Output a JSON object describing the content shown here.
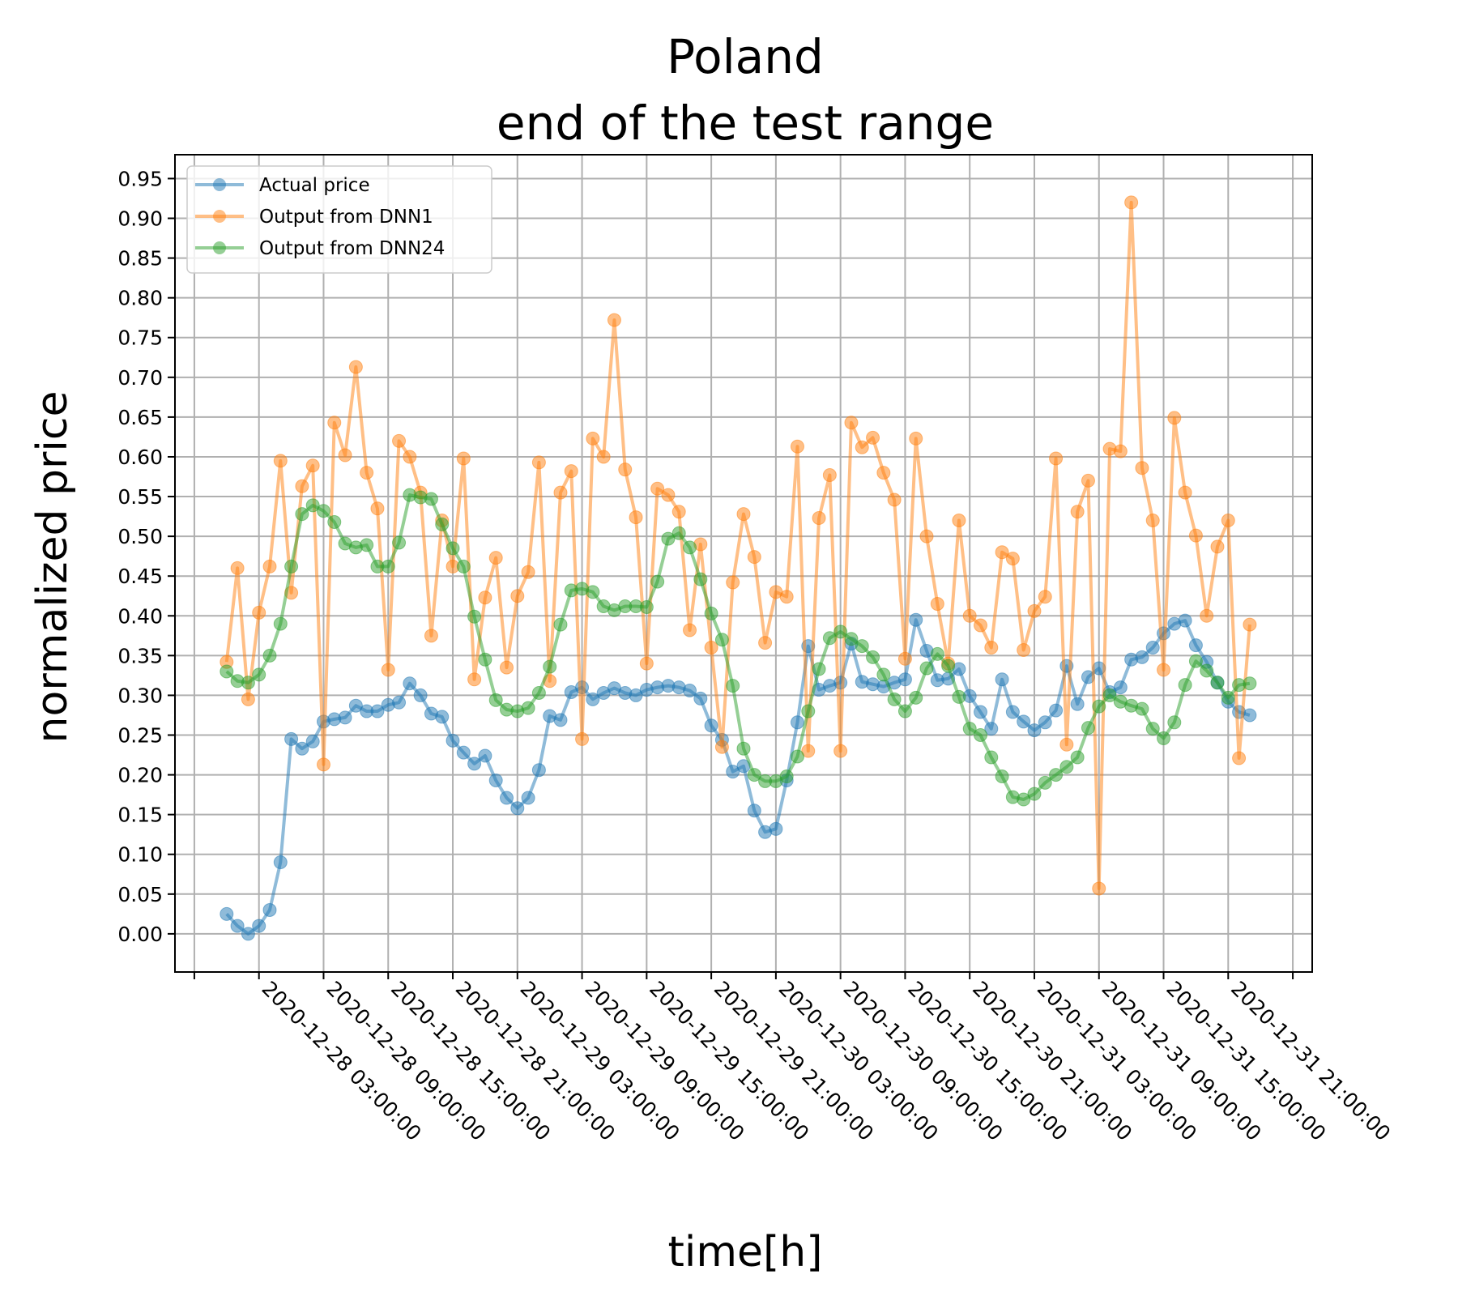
{
  "chart_data": {
    "type": "line",
    "title_lines": [
      "Poland",
      "end of the test range"
    ],
    "xlabel": "time[h]",
    "ylabel": "normalized price",
    "ylim": [
      -0.048,
      0.98
    ],
    "yticks": [
      "0.00",
      "0.05",
      "0.10",
      "0.15",
      "0.20",
      "0.25",
      "0.30",
      "0.35",
      "0.40",
      "0.45",
      "0.50",
      "0.55",
      "0.60",
      "0.65",
      "0.70",
      "0.75",
      "0.80",
      "0.85",
      "0.90",
      "0.95"
    ],
    "ytick_values": [
      0.0,
      0.05,
      0.1,
      0.15,
      0.2,
      0.25,
      0.3,
      0.35,
      0.4,
      0.45,
      0.5,
      0.55,
      0.6,
      0.65,
      0.7,
      0.75,
      0.8,
      0.85,
      0.9,
      0.95
    ],
    "x_start": "2020-12-28 00:00:00",
    "x_step_hours": 1,
    "xlim_hours": [
      -4.8,
      100.8
    ],
    "xtick_hours": [
      -3,
      3,
      9,
      15,
      21,
      27,
      33,
      39,
      45,
      51,
      57,
      63,
      69,
      75,
      81,
      87,
      93,
      99
    ],
    "xtick_labels": [
      "",
      "2020-12-28 03:00:00",
      "2020-12-28 09:00:00",
      "2020-12-28 15:00:00",
      "2020-12-28 21:00:00",
      "2020-12-29 03:00:00",
      "2020-12-29 09:00:00",
      "2020-12-29 15:00:00",
      "2020-12-29 21:00:00",
      "2020-12-30 03:00:00",
      "2020-12-30 09:00:00",
      "2020-12-30 15:00:00",
      "2020-12-30 21:00:00",
      "2020-12-31 03:00:00",
      "2020-12-31 09:00:00",
      "2020-12-31 15:00:00",
      "2020-12-31 21:00:00",
      ""
    ],
    "grid": true,
    "legend_position": "top-left",
    "series": [
      {
        "name": "Actual price",
        "color": "#1f77b4",
        "values": [
          0.025,
          0.01,
          0.0,
          0.01,
          0.03,
          0.09,
          0.245,
          0.233,
          0.242,
          0.267,
          0.27,
          0.272,
          0.287,
          0.28,
          0.28,
          0.288,
          0.291,
          0.315,
          0.3,
          0.277,
          0.273,
          0.243,
          0.228,
          0.214,
          0.224,
          0.193,
          0.171,
          0.158,
          0.171,
          0.206,
          0.274,
          0.269,
          0.304,
          0.31,
          0.295,
          0.303,
          0.309,
          0.303,
          0.3,
          0.307,
          0.31,
          0.312,
          0.31,
          0.306,
          0.296,
          0.262,
          0.244,
          0.204,
          0.211,
          0.155,
          0.128,
          0.132,
          0.193,
          0.266,
          0.362,
          0.307,
          0.312,
          0.316,
          0.365,
          0.317,
          0.314,
          0.311,
          0.316,
          0.32,
          0.395,
          0.356,
          0.319,
          0.321,
          0.333,
          0.299,
          0.279,
          0.258,
          0.32,
          0.279,
          0.267,
          0.256,
          0.266,
          0.281,
          0.337,
          0.289,
          0.323,
          0.334,
          0.304,
          0.31,
          0.345,
          0.348,
          0.36,
          0.378,
          0.39,
          0.394,
          0.363,
          0.342,
          0.316,
          0.292,
          0.279,
          0.275
        ]
      },
      {
        "name": "Output from DNN1",
        "color": "#ff7f0e",
        "values": [
          0.342,
          0.46,
          0.295,
          0.404,
          0.462,
          0.595,
          0.429,
          0.563,
          0.589,
          0.213,
          0.643,
          0.602,
          0.713,
          0.58,
          0.535,
          0.332,
          0.62,
          0.6,
          0.555,
          0.375,
          0.52,
          0.462,
          0.598,
          0.32,
          0.423,
          0.473,
          0.335,
          0.425,
          0.455,
          0.593,
          0.318,
          0.555,
          0.582,
          0.245,
          0.623,
          0.6,
          0.772,
          0.584,
          0.524,
          0.34,
          0.56,
          0.552,
          0.531,
          0.382,
          0.49,
          0.36,
          0.235,
          0.442,
          0.528,
          0.474,
          0.366,
          0.43,
          0.424,
          0.613,
          0.23,
          0.523,
          0.577,
          0.23,
          0.643,
          0.612,
          0.624,
          0.58,
          0.546,
          0.346,
          0.623,
          0.5,
          0.415,
          0.34,
          0.52,
          0.4,
          0.388,
          0.36,
          0.48,
          0.472,
          0.357,
          0.406,
          0.424,
          0.598,
          0.238,
          0.531,
          0.57,
          0.057,
          0.61,
          0.607,
          0.92,
          0.586,
          0.52,
          0.332,
          0.649,
          0.555,
          0.501,
          0.4,
          0.487,
          0.52,
          0.221,
          0.389
        ]
      },
      {
        "name": "Output from DNN24",
        "color": "#2ca02c",
        "values": [
          0.33,
          0.318,
          0.316,
          0.326,
          0.35,
          0.39,
          0.462,
          0.528,
          0.539,
          0.532,
          0.518,
          0.491,
          0.486,
          0.489,
          0.462,
          0.462,
          0.492,
          0.552,
          0.549,
          0.547,
          0.515,
          0.485,
          0.462,
          0.399,
          0.345,
          0.294,
          0.282,
          0.28,
          0.284,
          0.303,
          0.336,
          0.389,
          0.432,
          0.434,
          0.43,
          0.412,
          0.407,
          0.412,
          0.412,
          0.411,
          0.443,
          0.497,
          0.504,
          0.486,
          0.446,
          0.403,
          0.37,
          0.312,
          0.233,
          0.2,
          0.192,
          0.192,
          0.198,
          0.223,
          0.28,
          0.333,
          0.372,
          0.38,
          0.371,
          0.362,
          0.348,
          0.326,
          0.295,
          0.28,
          0.297,
          0.334,
          0.352,
          0.337,
          0.298,
          0.258,
          0.25,
          0.222,
          0.198,
          0.172,
          0.169,
          0.176,
          0.19,
          0.2,
          0.21,
          0.222,
          0.259,
          0.286,
          0.3,
          0.292,
          0.287,
          0.283,
          0.258,
          0.246,
          0.266,
          0.313,
          0.343,
          0.331,
          0.316,
          0.297,
          0.313,
          0.315
        ]
      }
    ]
  }
}
